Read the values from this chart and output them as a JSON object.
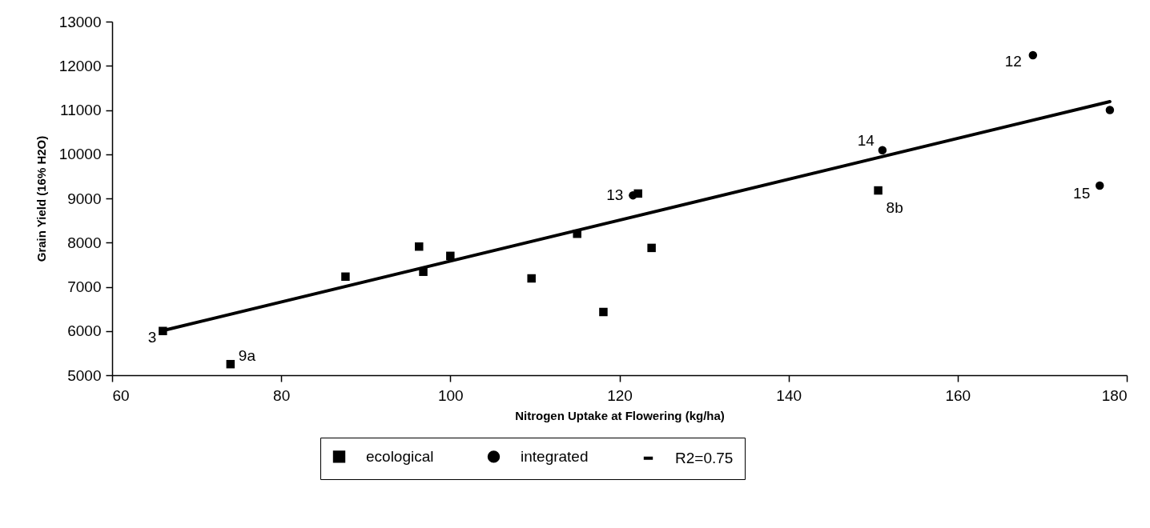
{
  "chart_data": {
    "type": "scatter",
    "xlabel": "Nitrogen Uptake at Flowering (kg/ha)",
    "ylabel": "Grain Yield (16% H2O)",
    "xlim": [
      60,
      180
    ],
    "xticks": [
      60,
      80,
      100,
      120,
      140,
      160,
      180
    ],
    "ylim": [
      5000,
      13000
    ],
    "yticks": [
      5000,
      6000,
      7000,
      8000,
      9000,
      10000,
      11000,
      12000,
      13000
    ],
    "grid": false,
    "legend": "bottom",
    "series": [
      {
        "name": "ecological",
        "marker": "square",
        "color": "#000000",
        "x": [
          66,
          74,
          87.6,
          96.3,
          96.8,
          100,
          109.6,
          115,
          118.1,
          123.8,
          122.2,
          150.6
        ],
        "values": [
          6000,
          5250,
          7230,
          7910,
          7340,
          7700,
          7190,
          8200,
          6430,
          7880,
          9110,
          9180
        ]
      },
      {
        "name": "integrated",
        "marker": "circle",
        "color": "#000000",
        "x": [
          121.6,
          151.1,
          168.9,
          178,
          176.8
        ],
        "values": [
          9070,
          10090,
          12240,
          11000,
          9290
        ]
      },
      {
        "name": "R2=0.75",
        "type": "line",
        "marker": "none",
        "color": "#000000",
        "x": [
          66,
          178
        ],
        "values": [
          6010,
          11190
        ]
      }
    ],
    "annotations": [
      {
        "text": "3",
        "x": 66,
        "y": 6000
      },
      {
        "text": "9a",
        "x": 74,
        "y": 5250
      },
      {
        "text": "13",
        "x": 121.6,
        "y": 9070
      },
      {
        "text": "14",
        "x": 151.1,
        "y": 10090
      },
      {
        "text": "8b",
        "x": 150.6,
        "y": 9180
      },
      {
        "text": "12",
        "x": 168.9,
        "y": 12240
      },
      {
        "text": "15",
        "x": 176.8,
        "y": 9290
      }
    ]
  }
}
